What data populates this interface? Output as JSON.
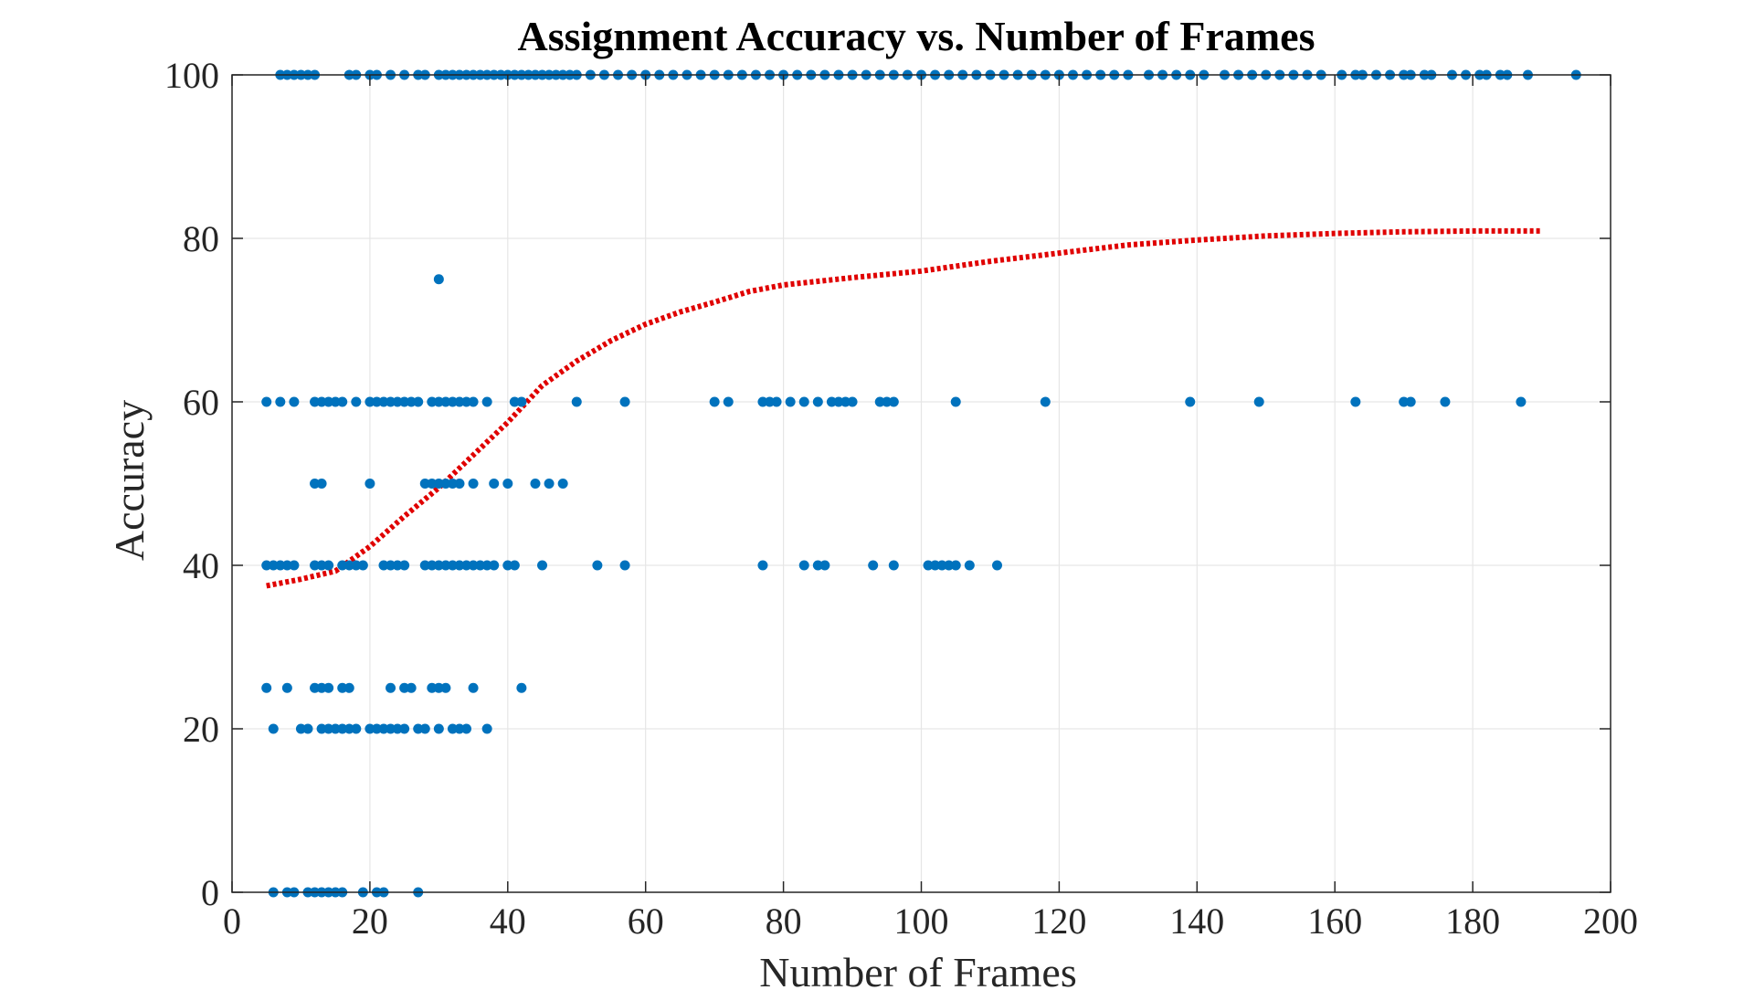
{
  "chart_data": {
    "type": "scatter",
    "title": "Assignment Accuracy vs. Number of Frames",
    "xlabel": "Number of Frames",
    "ylabel": "Accuracy",
    "xlim": [
      0,
      200
    ],
    "ylim": [
      0,
      100
    ],
    "xticks": [
      "0",
      "20",
      "40",
      "60",
      "80",
      "100",
      "120",
      "140",
      "160",
      "180",
      "200"
    ],
    "yticks": [
      "0",
      "20",
      "40",
      "60",
      "80",
      "100"
    ],
    "grid": true,
    "colors": {
      "points": "#0072BD",
      "fit": "#E00000"
    },
    "series": [
      {
        "type": "scatter",
        "points": [
          [
            7,
            100
          ],
          [
            8,
            100
          ],
          [
            9,
            100
          ],
          [
            10,
            100
          ],
          [
            11,
            100
          ],
          [
            12,
            100
          ],
          [
            17,
            100
          ],
          [
            18,
            100
          ],
          [
            20,
            100
          ],
          [
            21,
            100
          ],
          [
            23,
            100
          ],
          [
            25,
            100
          ],
          [
            27,
            100
          ],
          [
            28,
            100
          ],
          [
            30,
            100
          ],
          [
            31,
            100
          ],
          [
            32,
            100
          ],
          [
            33,
            100
          ],
          [
            34,
            100
          ],
          [
            35,
            100
          ],
          [
            36,
            100
          ],
          [
            37,
            100
          ],
          [
            38,
            100
          ],
          [
            39,
            100
          ],
          [
            40,
            100
          ],
          [
            41,
            100
          ],
          [
            42,
            100
          ],
          [
            43,
            100
          ],
          [
            44,
            100
          ],
          [
            45,
            100
          ],
          [
            46,
            100
          ],
          [
            47,
            100
          ],
          [
            48,
            100
          ],
          [
            49,
            100
          ],
          [
            50,
            100
          ],
          [
            52,
            100
          ],
          [
            54,
            100
          ],
          [
            56,
            100
          ],
          [
            58,
            100
          ],
          [
            60,
            100
          ],
          [
            62,
            100
          ],
          [
            64,
            100
          ],
          [
            66,
            100
          ],
          [
            68,
            100
          ],
          [
            70,
            100
          ],
          [
            72,
            100
          ],
          [
            74,
            100
          ],
          [
            76,
            100
          ],
          [
            78,
            100
          ],
          [
            80,
            100
          ],
          [
            82,
            100
          ],
          [
            84,
            100
          ],
          [
            86,
            100
          ],
          [
            88,
            100
          ],
          [
            90,
            100
          ],
          [
            92,
            100
          ],
          [
            94,
            100
          ],
          [
            96,
            100
          ],
          [
            98,
            100
          ],
          [
            100,
            100
          ],
          [
            102,
            100
          ],
          [
            104,
            100
          ],
          [
            106,
            100
          ],
          [
            108,
            100
          ],
          [
            110,
            100
          ],
          [
            112,
            100
          ],
          [
            114,
            100
          ],
          [
            116,
            100
          ],
          [
            118,
            100
          ],
          [
            120,
            100
          ],
          [
            122,
            100
          ],
          [
            124,
            100
          ],
          [
            126,
            100
          ],
          [
            128,
            100
          ],
          [
            130,
            100
          ],
          [
            133,
            100
          ],
          [
            135,
            100
          ],
          [
            137,
            100
          ],
          [
            139,
            100
          ],
          [
            141,
            100
          ],
          [
            144,
            100
          ],
          [
            146,
            100
          ],
          [
            148,
            100
          ],
          [
            150,
            100
          ],
          [
            152,
            100
          ],
          [
            154,
            100
          ],
          [
            156,
            100
          ],
          [
            158,
            100
          ],
          [
            161,
            100
          ],
          [
            163,
            100
          ],
          [
            164,
            100
          ],
          [
            166,
            100
          ],
          [
            168,
            100
          ],
          [
            170,
            100
          ],
          [
            171,
            100
          ],
          [
            173,
            100
          ],
          [
            174,
            100
          ],
          [
            177,
            100
          ],
          [
            179,
            100
          ],
          [
            181,
            100
          ],
          [
            182,
            100
          ],
          [
            184,
            100
          ],
          [
            185,
            100
          ],
          [
            188,
            100
          ],
          [
            195,
            100
          ],
          [
            30,
            75
          ],
          [
            5,
            60
          ],
          [
            7,
            60
          ],
          [
            9,
            60
          ],
          [
            12,
            60
          ],
          [
            13,
            60
          ],
          [
            14,
            60
          ],
          [
            15,
            60
          ],
          [
            16,
            60
          ],
          [
            18,
            60
          ],
          [
            20,
            60
          ],
          [
            21,
            60
          ],
          [
            22,
            60
          ],
          [
            23,
            60
          ],
          [
            24,
            60
          ],
          [
            25,
            60
          ],
          [
            26,
            60
          ],
          [
            27,
            60
          ],
          [
            29,
            60
          ],
          [
            30,
            60
          ],
          [
            31,
            60
          ],
          [
            32,
            60
          ],
          [
            33,
            60
          ],
          [
            34,
            60
          ],
          [
            35,
            60
          ],
          [
            37,
            60
          ],
          [
            41,
            60
          ],
          [
            42,
            60
          ],
          [
            50,
            60
          ],
          [
            57,
            60
          ],
          [
            70,
            60
          ],
          [
            72,
            60
          ],
          [
            77,
            60
          ],
          [
            78,
            60
          ],
          [
            79,
            60
          ],
          [
            81,
            60
          ],
          [
            83,
            60
          ],
          [
            85,
            60
          ],
          [
            87,
            60
          ],
          [
            88,
            60
          ],
          [
            89,
            60
          ],
          [
            90,
            60
          ],
          [
            94,
            60
          ],
          [
            95,
            60
          ],
          [
            96,
            60
          ],
          [
            105,
            60
          ],
          [
            118,
            60
          ],
          [
            139,
            60
          ],
          [
            149,
            60
          ],
          [
            163,
            60
          ],
          [
            170,
            60
          ],
          [
            171,
            60
          ],
          [
            176,
            60
          ],
          [
            187,
            60
          ],
          [
            12,
            50
          ],
          [
            13,
            50
          ],
          [
            20,
            50
          ],
          [
            28,
            50
          ],
          [
            29,
            50
          ],
          [
            30,
            50
          ],
          [
            31,
            50
          ],
          [
            32,
            50
          ],
          [
            33,
            50
          ],
          [
            35,
            50
          ],
          [
            38,
            50
          ],
          [
            40,
            50
          ],
          [
            44,
            50
          ],
          [
            46,
            50
          ],
          [
            48,
            50
          ],
          [
            5,
            40
          ],
          [
            6,
            40
          ],
          [
            7,
            40
          ],
          [
            8,
            40
          ],
          [
            9,
            40
          ],
          [
            12,
            40
          ],
          [
            13,
            40
          ],
          [
            14,
            40
          ],
          [
            16,
            40
          ],
          [
            17,
            40
          ],
          [
            18,
            40
          ],
          [
            19,
            40
          ],
          [
            22,
            40
          ],
          [
            23,
            40
          ],
          [
            24,
            40
          ],
          [
            25,
            40
          ],
          [
            28,
            40
          ],
          [
            29,
            40
          ],
          [
            30,
            40
          ],
          [
            31,
            40
          ],
          [
            32,
            40
          ],
          [
            33,
            40
          ],
          [
            34,
            40
          ],
          [
            35,
            40
          ],
          [
            36,
            40
          ],
          [
            37,
            40
          ],
          [
            38,
            40
          ],
          [
            40,
            40
          ],
          [
            41,
            40
          ],
          [
            45,
            40
          ],
          [
            53,
            40
          ],
          [
            57,
            40
          ],
          [
            77,
            40
          ],
          [
            83,
            40
          ],
          [
            85,
            40
          ],
          [
            86,
            40
          ],
          [
            93,
            40
          ],
          [
            96,
            40
          ],
          [
            101,
            40
          ],
          [
            102,
            40
          ],
          [
            103,
            40
          ],
          [
            104,
            40
          ],
          [
            105,
            40
          ],
          [
            107,
            40
          ],
          [
            111,
            40
          ],
          [
            5,
            25
          ],
          [
            8,
            25
          ],
          [
            12,
            25
          ],
          [
            13,
            25
          ],
          [
            14,
            25
          ],
          [
            16,
            25
          ],
          [
            17,
            25
          ],
          [
            23,
            25
          ],
          [
            25,
            25
          ],
          [
            26,
            25
          ],
          [
            29,
            25
          ],
          [
            30,
            25
          ],
          [
            31,
            25
          ],
          [
            35,
            25
          ],
          [
            42,
            25
          ],
          [
            6,
            20
          ],
          [
            10,
            20
          ],
          [
            11,
            20
          ],
          [
            13,
            20
          ],
          [
            14,
            20
          ],
          [
            15,
            20
          ],
          [
            16,
            20
          ],
          [
            17,
            20
          ],
          [
            18,
            20
          ],
          [
            20,
            20
          ],
          [
            21,
            20
          ],
          [
            22,
            20
          ],
          [
            23,
            20
          ],
          [
            24,
            20
          ],
          [
            25,
            20
          ],
          [
            27,
            20
          ],
          [
            28,
            20
          ],
          [
            30,
            20
          ],
          [
            32,
            20
          ],
          [
            33,
            20
          ],
          [
            34,
            20
          ],
          [
            37,
            20
          ],
          [
            6,
            0
          ],
          [
            8,
            0
          ],
          [
            9,
            0
          ],
          [
            11,
            0
          ],
          [
            12,
            0
          ],
          [
            13,
            0
          ],
          [
            14,
            0
          ],
          [
            15,
            0
          ],
          [
            16,
            0
          ],
          [
            19,
            0
          ],
          [
            21,
            0
          ],
          [
            22,
            0
          ],
          [
            27,
            0
          ]
        ]
      },
      {
        "type": "line",
        "style": "dotted",
        "points": [
          [
            5,
            37.5
          ],
          [
            10,
            38.3
          ],
          [
            15,
            39.3
          ],
          [
            20,
            42.3
          ],
          [
            25,
            46
          ],
          [
            30,
            49.5
          ],
          [
            35,
            53.5
          ],
          [
            40,
            57.5
          ],
          [
            45,
            62
          ],
          [
            50,
            65
          ],
          [
            55,
            67.5
          ],
          [
            60,
            69.5
          ],
          [
            65,
            71
          ],
          [
            70,
            72.2
          ],
          [
            75,
            73.5
          ],
          [
            80,
            74.3
          ],
          [
            90,
            75.2
          ],
          [
            100,
            76
          ],
          [
            110,
            77.2
          ],
          [
            120,
            78.2
          ],
          [
            130,
            79.2
          ],
          [
            140,
            79.8
          ],
          [
            150,
            80.3
          ],
          [
            160,
            80.6
          ],
          [
            170,
            80.8
          ],
          [
            180,
            80.9
          ],
          [
            190,
            80.9
          ]
        ]
      }
    ]
  }
}
